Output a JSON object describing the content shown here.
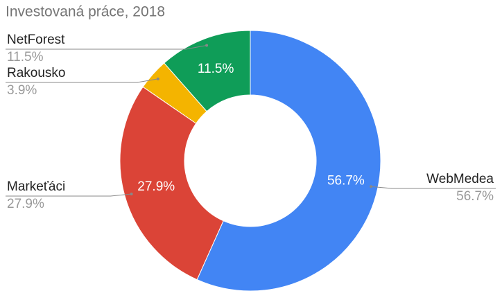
{
  "chart_data": {
    "type": "donut",
    "title": "Investovaná práce, 2018",
    "categories": [
      "WebMedea",
      "Markeťáci",
      "Rakousko",
      "NetForest"
    ],
    "values": [
      56.7,
      27.9,
      3.9,
      11.5
    ],
    "value_labels": [
      "56.7%",
      "27.9%",
      "3.9%",
      "11.5%"
    ],
    "colors": [
      "#4285f4",
      "#db4437",
      "#f4b400",
      "#0f9d58"
    ]
  }
}
